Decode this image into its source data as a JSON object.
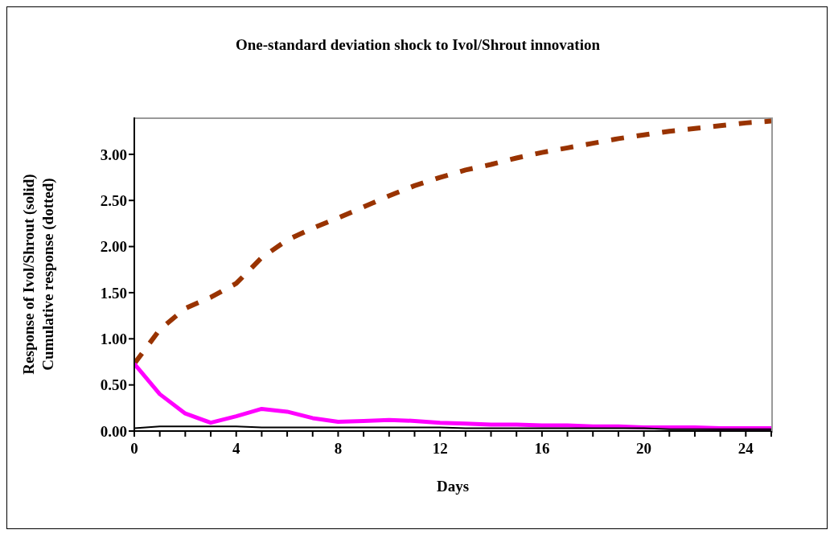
{
  "chart_data": {
    "type": "line",
    "title": "One-standard deviation shock to Ivol/Shrout innovation",
    "xlabel": "Days",
    "ylabel": "Response of Ivol/Shrout (solid)\nCumulative response (dotted)",
    "x": [
      0,
      1,
      2,
      3,
      4,
      5,
      6,
      7,
      8,
      9,
      10,
      11,
      12,
      13,
      14,
      15,
      16,
      17,
      18,
      19,
      20,
      21,
      22,
      23,
      24,
      25
    ],
    "series": [
      {
        "color": "#993300",
        "line_style": "dashed",
        "values": [
          0.73,
          1.1,
          1.33,
          1.45,
          1.6,
          1.88,
          2.07,
          2.2,
          2.31,
          2.43,
          2.55,
          2.66,
          2.75,
          2.83,
          2.89,
          2.96,
          3.02,
          3.07,
          3.12,
          3.17,
          3.21,
          3.25,
          3.28,
          3.31,
          3.34,
          3.36
        ]
      },
      {
        "color": "#ff00ff",
        "line_style": "solid",
        "values": [
          0.73,
          0.4,
          0.19,
          0.09,
          0.16,
          0.24,
          0.21,
          0.14,
          0.1,
          0.11,
          0.12,
          0.11,
          0.09,
          0.08,
          0.07,
          0.07,
          0.06,
          0.06,
          0.05,
          0.05,
          0.04,
          0.04,
          0.04,
          0.03,
          0.03,
          0.03
        ]
      },
      {
        "color": "#000000",
        "line_style": "solid",
        "values": [
          0.03,
          0.05,
          0.05,
          0.05,
          0.05,
          0.04,
          0.04,
          0.04,
          0.04,
          0.04,
          0.04,
          0.04,
          0.04,
          0.03,
          0.03,
          0.03,
          0.03,
          0.03,
          0.03,
          0.03,
          0.03,
          0.02,
          0.02,
          0.02,
          0.02,
          0.02
        ]
      }
    ],
    "xlim": [
      0,
      25
    ],
    "xticks": [
      0,
      {
        "value": 1,
        "label": null
      },
      {
        "value": 2,
        "label": null
      },
      {
        "value": 3,
        "label": null
      },
      4,
      {
        "value": 5,
        "label": null
      },
      {
        "value": 6,
        "label": null
      },
      {
        "value": 7,
        "label": null
      },
      8,
      {
        "value": 9,
        "label": null
      },
      {
        "value": 10,
        "label": null
      },
      {
        "value": 11,
        "label": null
      },
      12,
      {
        "value": 13,
        "label": null
      },
      {
        "value": 14,
        "label": null
      },
      {
        "value": 15,
        "label": null
      },
      16,
      {
        "value": 17,
        "label": null
      },
      {
        "value": 18,
        "label": null
      },
      {
        "value": 19,
        "label": null
      },
      20,
      {
        "value": 21,
        "label": null
      },
      {
        "value": 22,
        "label": null
      },
      {
        "value": 23,
        "label": null
      },
      24,
      {
        "value": 25,
        "label": null
      }
    ],
    "ylim": [
      0,
      3.4
    ],
    "yticks": [
      {
        "value": 0,
        "label": "0.00"
      },
      {
        "value": 0.5,
        "label": "0.50"
      },
      {
        "value": 1,
        "label": "1.00"
      },
      {
        "value": 1.5,
        "label": "1.50"
      },
      {
        "value": 2,
        "label": "2.00"
      },
      {
        "value": 2.5,
        "label": "2.50"
      },
      {
        "value": 3,
        "label": "3.00"
      }
    ],
    "grid": false,
    "marker": "none"
  }
}
